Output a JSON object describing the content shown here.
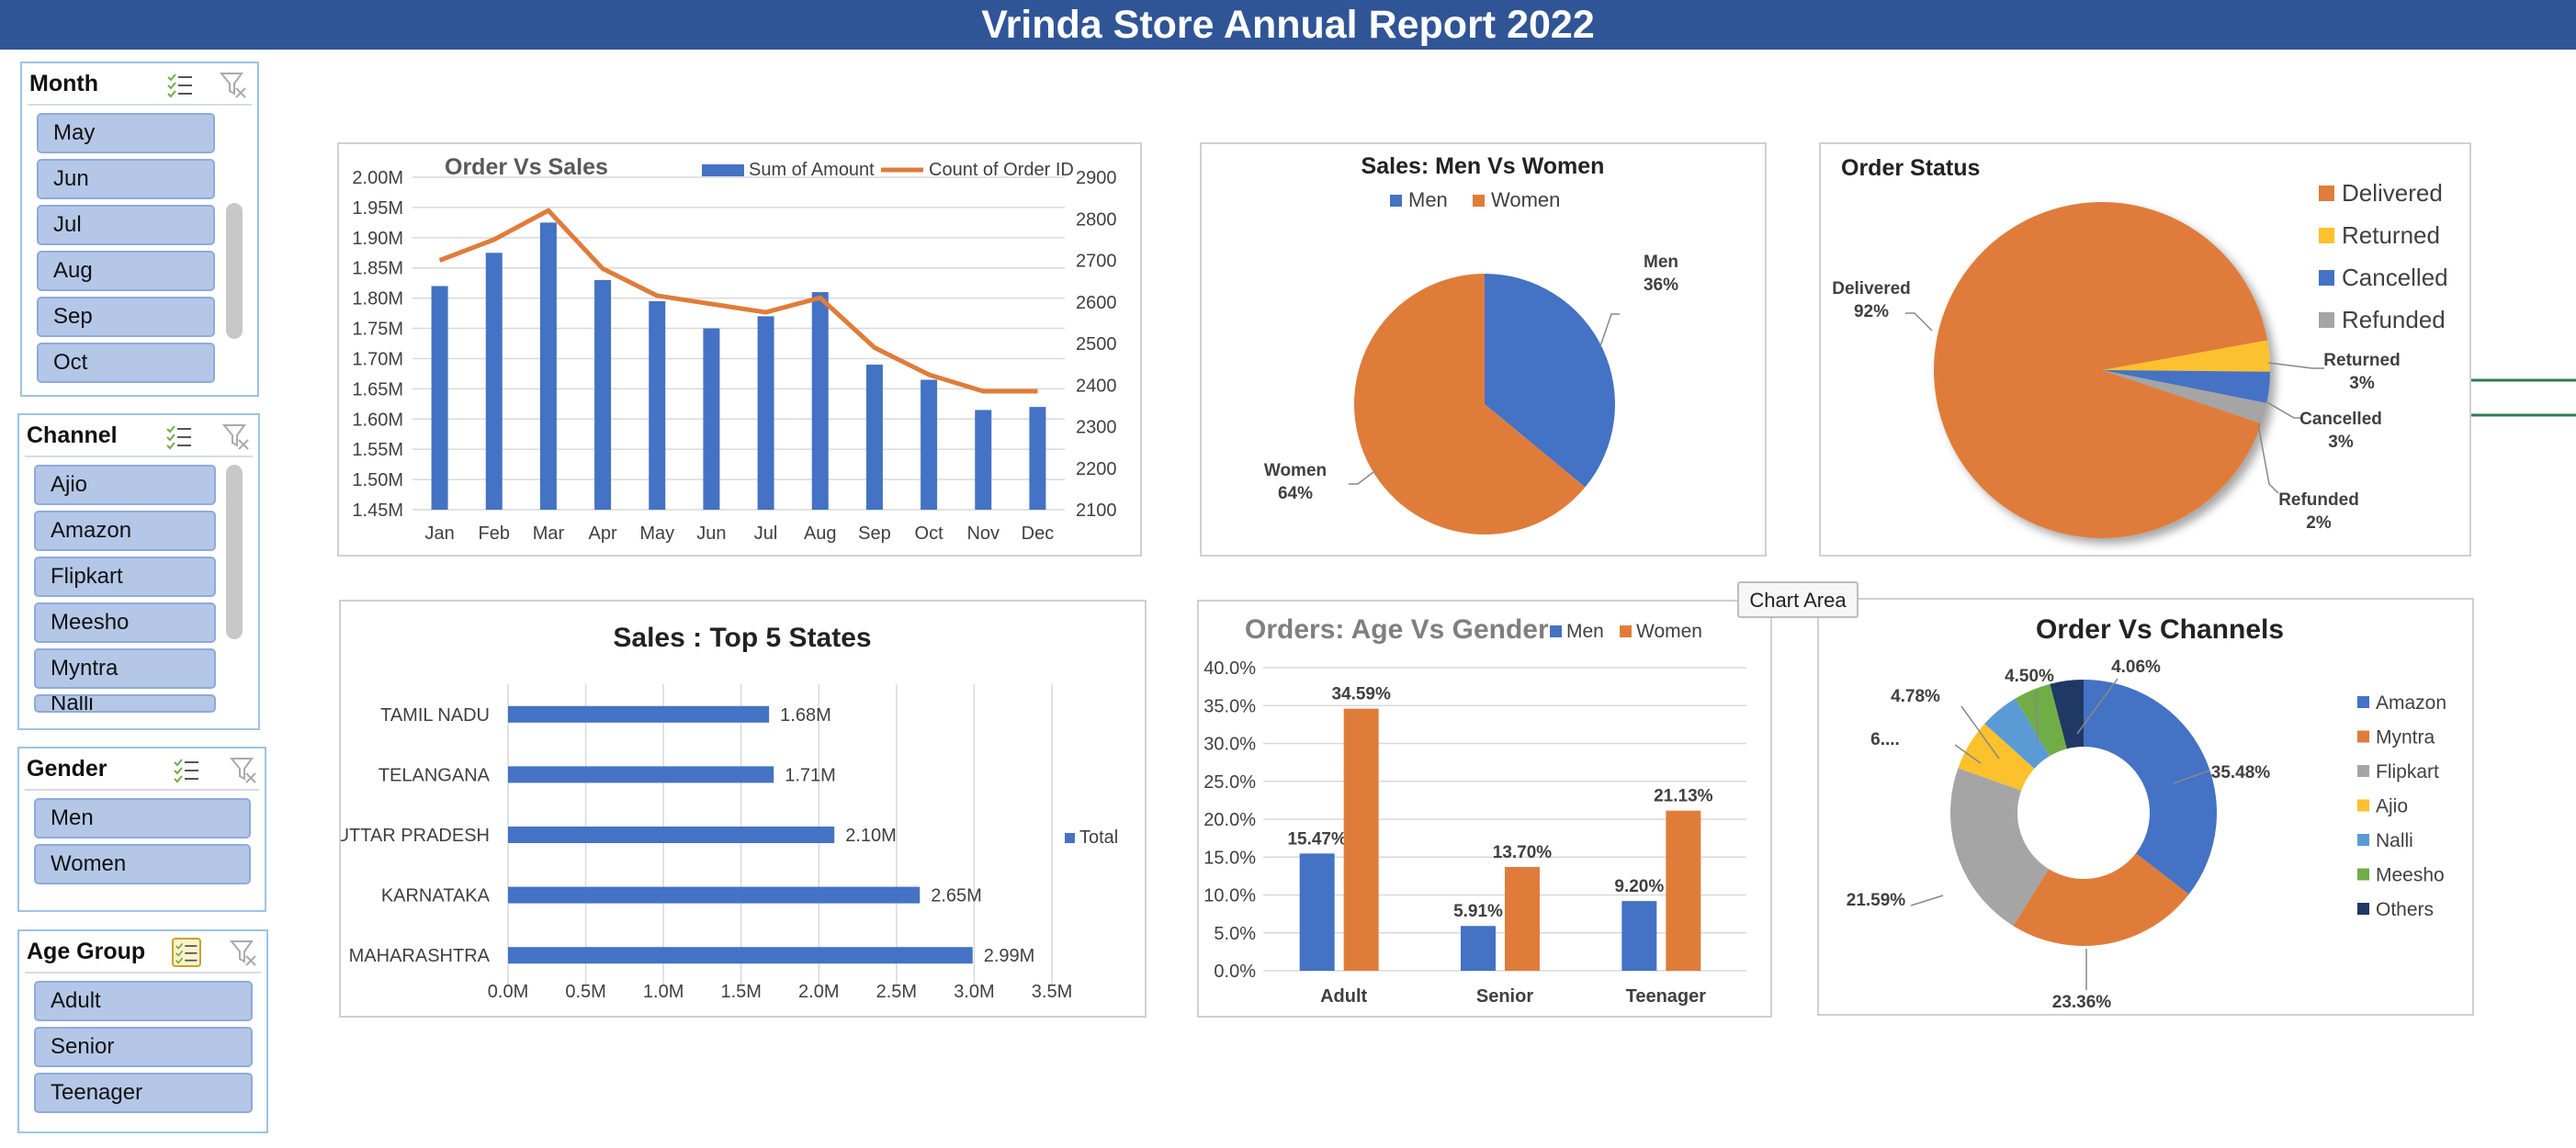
{
  "report_title": "Vrinda Store Annual Report 2022",
  "colors": {
    "blue": "#4472c4",
    "orange": "#e07c3a",
    "gray": "#a5a5a5",
    "yellow": "#fcc12d",
    "lightblue": "#5b9bd5",
    "green": "#70ad47",
    "navy": "#203864",
    "header": "#2f5597",
    "slicer_item": "#b4c7e7"
  },
  "slicers": {
    "month": {
      "title": "Month",
      "items": [
        "May",
        "Jun",
        "Jul",
        "Aug",
        "Sep",
        "Oct"
      ]
    },
    "channel": {
      "title": "Channel",
      "items": [
        "Ajio",
        "Amazon",
        "Flipkart",
        "Meesho",
        "Myntra",
        "Nalli"
      ]
    },
    "gender": {
      "title": "Gender",
      "items": [
        "Men",
        "Women"
      ]
    },
    "age_group": {
      "title": "Age Group",
      "items": [
        "Adult",
        "Senior",
        "Teenager"
      ]
    }
  },
  "icons": {
    "multi_select": "multi-select-icon",
    "clear_filter": "clear-filter-icon"
  },
  "tooltip": {
    "text": "Chart Area"
  },
  "chart_data": [
    {
      "id": "order_vs_sales",
      "type": "bar",
      "title": "Order Vs Sales",
      "categories": [
        "Jan",
        "Feb",
        "Mar",
        "Apr",
        "May",
        "Jun",
        "Jul",
        "Aug",
        "Sep",
        "Oct",
        "Nov",
        "Dec"
      ],
      "series": [
        {
          "name": "Sum of Amount",
          "type": "bar",
          "axis": "left",
          "values": [
            1.82,
            1.875,
            1.925,
            1.83,
            1.795,
            1.75,
            1.77,
            1.81,
            1.69,
            1.665,
            1.615,
            1.62
          ]
        },
        {
          "name": "Count of Order ID",
          "type": "line",
          "axis": "right",
          "values": [
            2700,
            2750,
            2820,
            2680,
            2615,
            2595,
            2575,
            2610,
            2490,
            2425,
            2385,
            2385
          ]
        }
      ],
      "y_left": {
        "ticks": [
          "2.00M",
          "1.95M",
          "1.90M",
          "1.85M",
          "1.80M",
          "1.75M",
          "1.70M",
          "1.65M",
          "1.60M",
          "1.55M",
          "1.50M",
          "1.45M"
        ],
        "range": [
          1.45,
          2.0
        ]
      },
      "y_right": {
        "ticks": [
          "2900",
          "2800",
          "2700",
          "2600",
          "2500",
          "2400",
          "2300",
          "2200",
          "2100"
        ],
        "range": [
          2100,
          2900
        ]
      },
      "legend": "top-right",
      "grid": true
    },
    {
      "id": "men_vs_women",
      "type": "pie",
      "title": "Sales: Men Vs Women",
      "series": [
        {
          "name": "Men",
          "value": 36,
          "label": "Men\n36%"
        },
        {
          "name": "Women",
          "value": 64,
          "label": "Women\n64%"
        }
      ],
      "legend_items": [
        "Men",
        "Women"
      ],
      "legend": "top"
    },
    {
      "id": "order_status",
      "type": "pie",
      "title": "Order Status",
      "series": [
        {
          "name": "Delivered",
          "value": 92,
          "label": "Delivered\n92%"
        },
        {
          "name": "Returned",
          "value": 3,
          "label": "Returned\n3%"
        },
        {
          "name": "Cancelled",
          "value": 3,
          "label": "Cancelled\n3%"
        },
        {
          "name": "Refunded",
          "value": 2,
          "label": "Refunded\n2%"
        }
      ],
      "legend_items": [
        "Delivered",
        "Returned",
        "Cancelled",
        "Refunded"
      ],
      "legend": "right"
    },
    {
      "id": "top5_states",
      "type": "bar",
      "orientation": "horizontal",
      "title": "Sales : Top 5 States",
      "categories": [
        "TAMIL NADU",
        "TELANGANA",
        "UTTAR PRADESH",
        "KARNATAKA",
        "MAHARASHTRA"
      ],
      "values": [
        1.68,
        1.71,
        2.1,
        2.65,
        2.99
      ],
      "data_labels": [
        "1.68M",
        "1.71M",
        "2.10M",
        "2.65M",
        "2.99M"
      ],
      "x_ticks": [
        "0.0M",
        "0.5M",
        "1.0M",
        "1.5M",
        "2.0M",
        "2.5M",
        "3.0M",
        "3.5M"
      ],
      "xlim": [
        0,
        3.5
      ],
      "legend_items": [
        "Total"
      ],
      "legend": "right",
      "grid": true
    },
    {
      "id": "age_vs_gender",
      "type": "bar",
      "title": "Orders: Age Vs Gender",
      "categories": [
        "Adult",
        "Senior",
        "Teenager"
      ],
      "series": [
        {
          "name": "Men",
          "values": [
            15.47,
            5.91,
            9.2
          ],
          "labels": [
            "15.47%",
            "5.91%",
            "9.20%"
          ]
        },
        {
          "name": "Women",
          "values": [
            34.59,
            13.7,
            21.13
          ],
          "labels": [
            "34.59%",
            "13.70%",
            "21.13%"
          ]
        }
      ],
      "y_ticks": [
        "40.0%",
        "35.0%",
        "30.0%",
        "25.0%",
        "20.0%",
        "15.0%",
        "10.0%",
        "5.0%",
        "0.0%"
      ],
      "ylim": [
        0,
        40
      ],
      "legend": "top",
      "grid": true
    },
    {
      "id": "order_vs_channels",
      "type": "pie",
      "subtype": "doughnut",
      "title": "Order Vs Channels",
      "series": [
        {
          "name": "Amazon",
          "value": 35.48,
          "label": "35.48%"
        },
        {
          "name": "Myntra",
          "value": 23.36,
          "label": "23.36%"
        },
        {
          "name": "Flipkart",
          "value": 21.59,
          "label": "21.59%"
        },
        {
          "name": "Ajio",
          "value": 6.2,
          "label": "6...."
        },
        {
          "name": "Nalli",
          "value": 4.78,
          "label": "4.78%"
        },
        {
          "name": "Meesho",
          "value": 4.5,
          "label": "4.50%"
        },
        {
          "name": "Others",
          "value": 4.06,
          "label": "4.06%"
        }
      ],
      "legend_items": [
        "Amazon",
        "Myntra",
        "Flipkart",
        "Ajio",
        "Nalli",
        "Meesho",
        "Others"
      ],
      "legend": "right"
    }
  ]
}
